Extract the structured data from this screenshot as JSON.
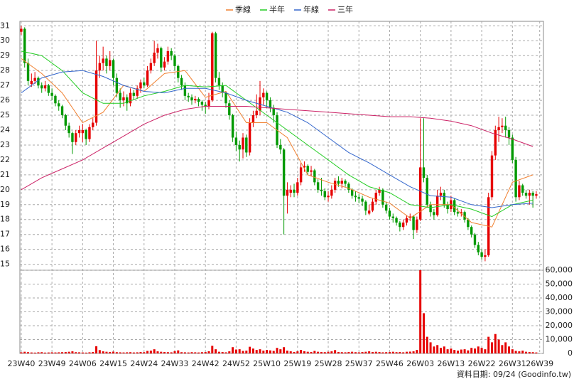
{
  "chart_data": {
    "type": "candlestick",
    "up_color": "#e60000",
    "down_color": "#009900",
    "grid": true,
    "xlim": [
      -0.4,
      153.1
    ],
    "xticks": [
      {
        "value": 0,
        "label": "23W40"
      },
      {
        "value": 9,
        "label": "23W49"
      },
      {
        "value": 18,
        "label": "24W06"
      },
      {
        "value": 27,
        "label": "24W15"
      },
      {
        "value": 36,
        "label": "24W24"
      },
      {
        "value": 45,
        "label": "24W33"
      },
      {
        "value": 54,
        "label": "24W42"
      },
      {
        "value": 63,
        "label": "24W52"
      },
      {
        "value": 72,
        "label": "25W10"
      },
      {
        "value": 81,
        "label": "25W19"
      },
      {
        "value": 90,
        "label": "25W28"
      },
      {
        "value": 99,
        "label": "25W37"
      },
      {
        "value": 108,
        "label": "25W46"
      },
      {
        "value": 117,
        "label": "26W03"
      },
      {
        "value": 126,
        "label": "26W13"
      },
      {
        "value": 135,
        "label": "26W22"
      },
      {
        "value": 144,
        "label": "26W31"
      },
      {
        "value": 152,
        "label": "26W39"
      }
    ],
    "ylim": [
      14.6,
      31.3
    ],
    "yticks": [
      15,
      16,
      17,
      18,
      19,
      20,
      21,
      22,
      23,
      24,
      25,
      26,
      27,
      28,
      29,
      30,
      31
    ],
    "ohlc": [
      [
        30.6,
        31.0,
        30.4,
        30.8
      ],
      [
        30.8,
        30.9,
        28.2,
        28.5
      ],
      [
        28.5,
        28.8,
        27.0,
        27.3
      ],
      [
        27.1,
        27.8,
        26.9,
        27.3
      ],
      [
        27.3,
        27.9,
        27.1,
        27.5
      ],
      [
        27.5,
        27.6,
        26.8,
        27.0
      ],
      [
        27.0,
        27.2,
        26.5,
        26.8
      ],
      [
        26.8,
        27.3,
        26.6,
        27.0
      ],
      [
        27.0,
        27.1,
        26.3,
        26.5
      ],
      [
        26.5,
        26.8,
        26.0,
        26.3
      ],
      [
        26.3,
        26.4,
        25.6,
        25.8
      ],
      [
        25.8,
        26.0,
        25.3,
        25.6
      ],
      [
        25.6,
        25.7,
        24.8,
        25.0
      ],
      [
        25.0,
        25.1,
        24.0,
        24.3
      ],
      [
        24.3,
        24.5,
        23.5,
        23.8
      ],
      [
        23.8,
        23.9,
        22.4,
        23.2
      ],
      [
        23.2,
        24.0,
        23.0,
        23.8
      ],
      [
        23.8,
        24.3,
        23.5,
        24.0
      ],
      [
        23.8,
        24.4,
        23.2,
        24.0
      ],
      [
        24.0,
        24.1,
        23.0,
        23.4
      ],
      [
        23.4,
        24.4,
        23.2,
        24.2
      ],
      [
        24.2,
        24.8,
        24.0,
        24.5
      ],
      [
        24.5,
        30.0,
        24.3,
        28.0
      ],
      [
        28.0,
        29.0,
        27.5,
        28.5
      ],
      [
        28.5,
        29.6,
        28.0,
        28.8
      ],
      [
        28.8,
        29.0,
        27.8,
        28.3
      ],
      [
        28.3,
        29.3,
        28.0,
        28.7
      ],
      [
        28.7,
        28.8,
        27.0,
        27.5
      ],
      [
        27.5,
        27.8,
        26.2,
        26.5
      ],
      [
        26.5,
        26.8,
        25.5,
        26.0
      ],
      [
        26.0,
        26.6,
        25.6,
        26.2
      ],
      [
        26.2,
        26.4,
        25.3,
        25.8
      ],
      [
        25.8,
        26.8,
        25.6,
        26.5
      ],
      [
        26.5,
        26.7,
        26.0,
        26.3
      ],
      [
        26.3,
        27.0,
        26.1,
        26.8
      ],
      [
        26.8,
        27.4,
        26.5,
        27.2
      ],
      [
        27.2,
        27.5,
        26.8,
        27.0
      ],
      [
        27.0,
        28.3,
        26.9,
        28.0
      ],
      [
        28.0,
        28.8,
        27.8,
        28.5
      ],
      [
        28.5,
        30.0,
        28.3,
        29.2
      ],
      [
        29.2,
        29.8,
        28.8,
        29.5
      ],
      [
        29.5,
        29.6,
        27.9,
        28.2
      ],
      [
        28.2,
        28.9,
        28.0,
        28.6
      ],
      [
        28.6,
        29.6,
        28.4,
        29.3
      ],
      [
        29.3,
        29.5,
        28.7,
        29.0
      ],
      [
        29.0,
        29.1,
        28.0,
        28.3
      ],
      [
        28.3,
        28.4,
        27.2,
        27.5
      ],
      [
        27.5,
        27.7,
        26.7,
        27.0
      ],
      [
        27.0,
        27.2,
        26.0,
        26.3
      ],
      [
        26.3,
        26.5,
        25.9,
        26.2
      ],
      [
        26.2,
        26.4,
        25.7,
        26.0
      ],
      [
        26.0,
        26.3,
        25.8,
        26.1
      ],
      [
        26.1,
        26.2,
        25.6,
        25.9
      ],
      [
        25.9,
        26.0,
        25.3,
        25.7
      ],
      [
        25.7,
        25.9,
        25.1,
        25.6
      ],
      [
        25.6,
        26.5,
        25.4,
        26.0
      ],
      [
        26.0,
        30.6,
        25.9,
        30.5
      ],
      [
        30.5,
        30.6,
        27.2,
        27.5
      ],
      [
        27.5,
        27.9,
        26.7,
        27.0
      ],
      [
        27.0,
        27.2,
        26.2,
        26.5
      ],
      [
        26.5,
        26.6,
        25.5,
        25.8
      ],
      [
        25.8,
        26.0,
        24.7,
        25.0
      ],
      [
        25.0,
        25.1,
        23.2,
        23.5
      ],
      [
        23.5,
        23.9,
        22.6,
        23.0
      ],
      [
        23.0,
        23.3,
        21.9,
        22.7
      ],
      [
        22.7,
        23.8,
        22.1,
        23.5
      ],
      [
        23.5,
        23.7,
        22.2,
        22.5
      ],
      [
        22.5,
        24.8,
        22.3,
        24.5
      ],
      [
        24.5,
        25.3,
        24.2,
        25.0
      ],
      [
        25.0,
        26.4,
        24.8,
        25.3
      ],
      [
        25.3,
        27.3,
        25.0,
        26.2
      ],
      [
        26.2,
        26.8,
        25.7,
        26.5
      ],
      [
        26.5,
        26.6,
        25.5,
        26.0
      ],
      [
        26.0,
        26.2,
        25.2,
        25.5
      ],
      [
        25.5,
        25.7,
        24.5,
        25.0
      ],
      [
        25.0,
        25.2,
        22.8,
        23.0
      ],
      [
        23.0,
        23.4,
        22.4,
        22.7
      ],
      [
        22.7,
        22.8,
        17.0,
        19.6
      ],
      [
        19.6,
        20.5,
        18.4,
        20.0
      ],
      [
        19.8,
        20.3,
        19.5,
        20.0
      ],
      [
        20.0,
        20.4,
        19.5,
        19.8
      ],
      [
        19.8,
        20.8,
        19.6,
        20.5
      ],
      [
        20.5,
        21.8,
        20.3,
        21.5
      ],
      [
        21.5,
        21.9,
        21.2,
        21.6
      ],
      [
        21.6,
        21.7,
        21.0,
        21.2
      ],
      [
        21.2,
        21.6,
        20.9,
        21.3
      ],
      [
        21.3,
        21.4,
        20.3,
        20.5
      ],
      [
        20.5,
        20.7,
        19.8,
        20.0
      ],
      [
        20.0,
        20.8,
        19.6,
        19.9
      ],
      [
        19.9,
        20.1,
        19.3,
        19.5
      ],
      [
        19.5,
        19.9,
        19.2,
        19.6
      ],
      [
        19.6,
        20.3,
        19.4,
        20.0
      ],
      [
        20.0,
        20.8,
        19.8,
        20.6
      ],
      [
        20.6,
        20.9,
        20.2,
        20.4
      ],
      [
        20.4,
        20.8,
        20.1,
        20.6
      ],
      [
        20.6,
        20.7,
        20.2,
        20.4
      ],
      [
        20.4,
        20.5,
        19.8,
        20.0
      ],
      [
        20.0,
        20.1,
        19.4,
        19.6
      ],
      [
        19.6,
        19.9,
        19.2,
        19.5
      ],
      [
        19.5,
        19.7,
        19.1,
        19.4
      ],
      [
        19.4,
        19.6,
        18.9,
        19.2
      ],
      [
        19.2,
        19.3,
        18.3,
        18.6
      ],
      [
        18.4,
        19.0,
        18.3,
        18.6
      ],
      [
        18.6,
        19.4,
        18.5,
        19.2
      ],
      [
        19.2,
        20.0,
        19.0,
        19.8
      ],
      [
        19.8,
        20.2,
        19.6,
        20.0
      ],
      [
        20.0,
        20.1,
        18.8,
        19.0
      ],
      [
        19.0,
        19.2,
        18.4,
        18.6
      ],
      [
        18.6,
        18.8,
        18.0,
        18.2
      ],
      [
        18.2,
        18.4,
        17.8,
        18.1
      ],
      [
        18.1,
        18.2,
        17.6,
        17.8
      ],
      [
        17.8,
        17.9,
        17.2,
        17.5
      ],
      [
        17.5,
        18.0,
        17.3,
        17.8
      ],
      [
        17.8,
        18.3,
        17.6,
        18.1
      ],
      [
        18.1,
        18.4,
        17.9,
        18.2
      ],
      [
        18.2,
        18.3,
        16.7,
        17.3
      ],
      [
        17.3,
        18.2,
        17.1,
        18.0
      ],
      [
        18.0,
        24.8,
        17.9,
        21.5
      ],
      [
        21.5,
        24.8,
        20.5,
        20.8
      ],
      [
        20.8,
        21.0,
        18.8,
        19.0
      ],
      [
        19.0,
        19.2,
        18.2,
        18.5
      ],
      [
        18.5,
        18.7,
        18.0,
        18.3
      ],
      [
        18.3,
        20.0,
        18.2,
        19.6
      ],
      [
        19.6,
        20.2,
        19.3,
        19.8
      ],
      [
        19.8,
        20.0,
        18.8,
        19.0
      ],
      [
        19.0,
        19.2,
        18.4,
        18.7
      ],
      [
        18.7,
        19.6,
        18.5,
        19.3
      ],
      [
        19.3,
        19.4,
        18.3,
        18.5
      ],
      [
        18.5,
        18.8,
        18.2,
        18.4
      ],
      [
        18.4,
        18.7,
        18.2,
        18.5
      ],
      [
        18.5,
        18.6,
        17.8,
        18.0
      ],
      [
        18.0,
        18.1,
        17.3,
        17.5
      ],
      [
        17.5,
        17.6,
        16.8,
        17.0
      ],
      [
        17.0,
        17.1,
        16.1,
        16.3
      ],
      [
        16.3,
        16.5,
        15.6,
        15.8
      ],
      [
        15.8,
        16.0,
        15.3,
        15.5
      ],
      [
        15.5,
        16.0,
        15.2,
        15.6
      ],
      [
        15.6,
        19.8,
        15.5,
        19.5
      ],
      [
        19.5,
        22.6,
        19.3,
        22.3
      ],
      [
        22.3,
        24.3,
        22.0,
        24.0
      ],
      [
        24.0,
        24.9,
        23.2,
        24.2
      ],
      [
        24.2,
        24.8,
        23.8,
        24.3
      ],
      [
        24.3,
        24.9,
        23.5,
        24.0
      ],
      [
        24.0,
        24.2,
        23.0,
        23.5
      ],
      [
        23.5,
        23.7,
        21.8,
        22.0
      ],
      [
        22.0,
        22.2,
        19.2,
        19.5
      ],
      [
        19.5,
        20.6,
        19.3,
        20.3
      ],
      [
        20.3,
        20.4,
        19.6,
        19.8
      ],
      [
        19.8,
        20.0,
        19.4,
        19.6
      ],
      [
        19.6,
        20.0,
        19.0,
        19.8
      ],
      [
        19.8,
        19.9,
        18.8,
        19.6
      ],
      [
        19.6,
        19.9,
        19.4,
        19.7
      ]
    ],
    "series": [
      {
        "name": "季線",
        "color": "#f08030",
        "x": [
          0,
          6,
          12,
          18,
          24,
          30,
          36,
          42,
          48,
          54,
          60,
          66,
          72,
          78,
          84,
          90,
          96,
          102,
          108,
          114,
          120,
          126,
          132,
          138,
          144,
          150
        ],
        "values": [
          28.8,
          27.8,
          26.5,
          24.5,
          25.2,
          27.0,
          26.6,
          27.8,
          28.0,
          26.2,
          26.6,
          24.5,
          24.5,
          23.5,
          21.0,
          20.5,
          20.1,
          19.5,
          19.1,
          18.1,
          19.0,
          19.0,
          17.8,
          17.5,
          20.5,
          21.0
        ]
      },
      {
        "name": "半年",
        "color": "#22cc22",
        "x": [
          0,
          6,
          12,
          18,
          24,
          30,
          36,
          42,
          48,
          54,
          60,
          66,
          72,
          78,
          84,
          90,
          96,
          102,
          108,
          114,
          120,
          126,
          132,
          138,
          144,
          150
        ],
        "values": [
          29.3,
          29.0,
          28.0,
          26.5,
          25.8,
          25.8,
          26.3,
          26.6,
          27.0,
          26.9,
          27.0,
          26.0,
          25.0,
          24.0,
          23.0,
          22.0,
          21.0,
          20.2,
          19.8,
          19.0,
          18.8,
          19.0,
          18.7,
          18.2,
          19.0,
          19.3
        ]
      },
      {
        "name": "年線",
        "color": "#3366cc",
        "x": [
          0,
          6,
          12,
          18,
          24,
          30,
          36,
          42,
          48,
          54,
          60,
          66,
          72,
          78,
          84,
          90,
          96,
          102,
          108,
          114,
          120,
          126,
          132,
          138,
          144,
          150
        ],
        "values": [
          26.5,
          27.5,
          27.9,
          28.0,
          27.6,
          27.0,
          26.6,
          26.5,
          26.8,
          26.8,
          26.5,
          26.0,
          25.6,
          25.2,
          24.5,
          23.5,
          22.5,
          21.8,
          21.0,
          20.2,
          19.6,
          19.5,
          19.0,
          18.8,
          19.0,
          19.1
        ]
      },
      {
        "name": "三年",
        "color": "#cc2266",
        "x": [
          0,
          6,
          12,
          18,
          24,
          30,
          36,
          42,
          48,
          54,
          60,
          66,
          72,
          78,
          84,
          90,
          96,
          102,
          108,
          114,
          120,
          126,
          132,
          138,
          144,
          150
        ],
        "values": [
          20.0,
          20.8,
          21.4,
          22.0,
          22.8,
          23.6,
          24.4,
          25.0,
          25.4,
          25.6,
          25.6,
          25.6,
          25.5,
          25.4,
          25.3,
          25.2,
          25.1,
          25.0,
          24.9,
          24.9,
          24.8,
          24.6,
          24.3,
          23.8,
          23.4,
          22.9
        ]
      }
    ],
    "volume": {
      "color": "#e60000",
      "ylim": [
        0,
        60000
      ],
      "yticks": [
        0,
        {
          "value": 10000,
          "label": "10,000"
        },
        {
          "value": 20000,
          "label": "20,000"
        },
        {
          "value": 30000,
          "label": "30,000"
        },
        {
          "value": 40000,
          "label": "40,000"
        },
        {
          "value": 50000,
          "label": "50,000"
        },
        {
          "value": 60000,
          "label": "60,000"
        }
      ],
      "values": [
        800,
        1200,
        900,
        700,
        600,
        800,
        900,
        600,
        700,
        800,
        700,
        800,
        900,
        1000,
        1200,
        1500,
        900,
        800,
        700,
        600,
        800,
        1000,
        5200,
        2400,
        1500,
        1200,
        1000,
        1300,
        900,
        800,
        700,
        800,
        900,
        700,
        800,
        1000,
        900,
        1800,
        2000,
        3000,
        1500,
        1200,
        1000,
        900,
        800,
        1600,
        2200,
        900,
        800,
        700,
        900,
        800,
        700,
        900,
        1000,
        1600,
        5500,
        3000,
        1200,
        1000,
        800,
        1500,
        4500,
        2800,
        3000,
        1800,
        2000,
        4800,
        3500,
        2500,
        3000,
        2000,
        2500,
        2200,
        1800,
        4000,
        3000,
        4500,
        2000,
        1500,
        1000,
        1500,
        2500,
        1600,
        1200,
        1000,
        1800,
        1200,
        1000,
        900,
        1200,
        1500,
        2400,
        1000,
        900,
        800,
        1000,
        1200,
        900,
        800,
        1000,
        1200,
        1500,
        1000,
        1200,
        1000,
        800,
        900,
        1000,
        1200,
        900,
        1000,
        800,
        1200,
        1300,
        1500,
        2500,
        60000,
        29000,
        12000,
        8000,
        5000,
        6000,
        4000,
        5000,
        3000,
        3500,
        2500,
        2000,
        2800,
        3000,
        2200,
        4000,
        3500,
        5000,
        4000,
        3000,
        12000,
        8000,
        14000,
        10000,
        6000,
        8000,
        5000,
        3000,
        1800,
        1500,
        2000,
        1200,
        1000,
        900,
        700
      ]
    },
    "source": "資料日期: 09/24  (Goodinfo.tw)"
  }
}
